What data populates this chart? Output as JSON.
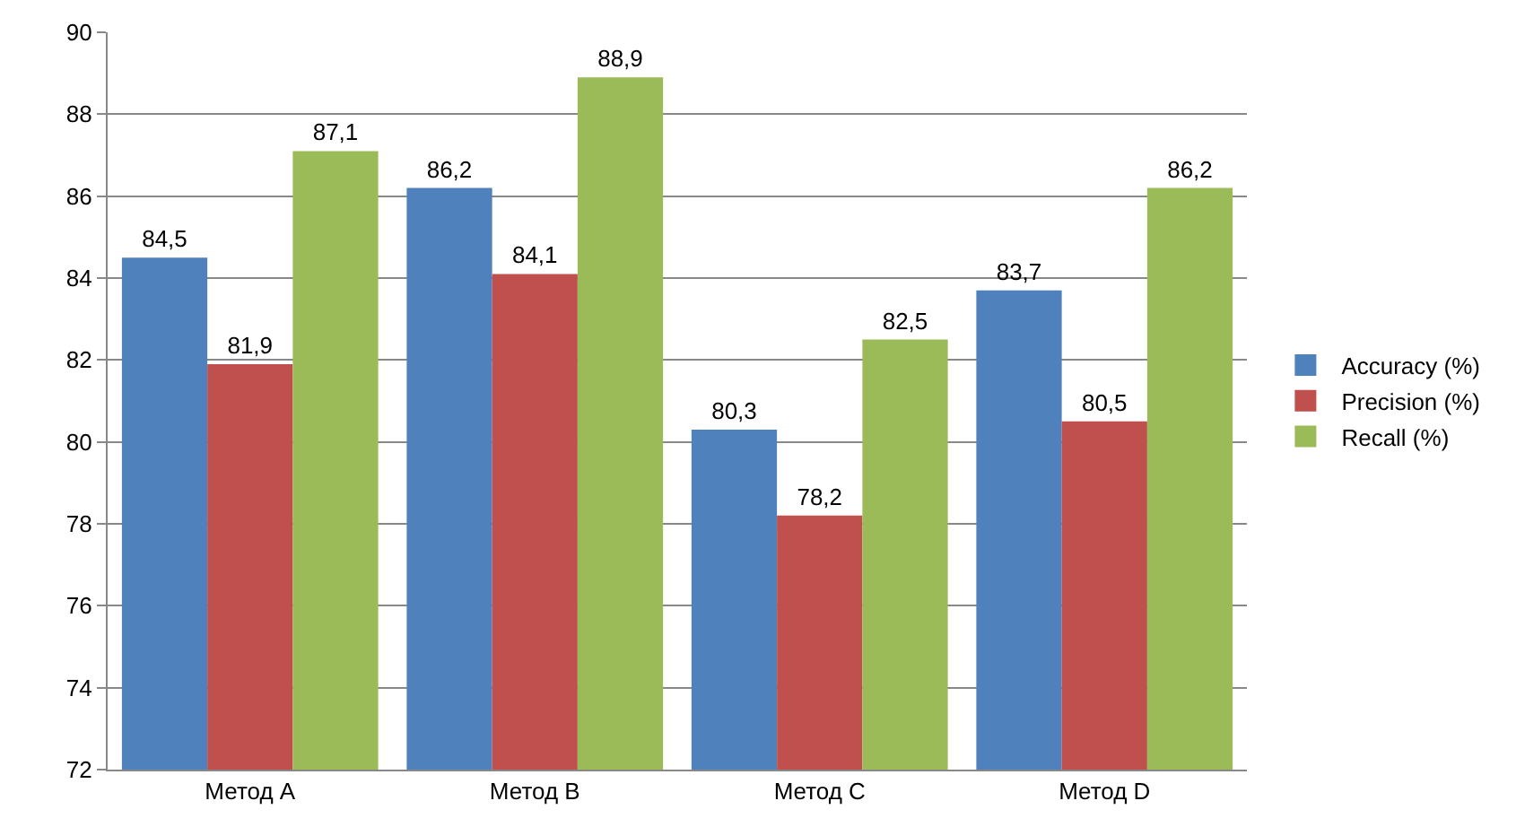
{
  "chart_data": {
    "type": "bar",
    "categories": [
      "Метод A",
      "Метод B",
      "Метод C",
      "Метод D"
    ],
    "series": [
      {
        "name": "Accuracy (%)",
        "color": "#4f81bd",
        "values": [
          84.5,
          86.2,
          80.3,
          83.7
        ],
        "value_labels": [
          "84,5",
          "86,2",
          "80,3",
          "83,7"
        ]
      },
      {
        "name": "Precision (%)",
        "color": "#c0504d",
        "values": [
          81.9,
          84.1,
          78.2,
          80.5
        ],
        "value_labels": [
          "81,9",
          "84,1",
          "78,2",
          "80,5"
        ]
      },
      {
        "name": "Recall (%)",
        "color": "#9bbb59",
        "values": [
          87.1,
          88.9,
          82.5,
          86.2
        ],
        "value_labels": [
          "87,1",
          "88,9",
          "82,5",
          "86,2"
        ]
      }
    ],
    "ylim": [
      72,
      90
    ],
    "yticks": [
      72,
      74,
      76,
      78,
      80,
      82,
      84,
      86,
      88,
      90
    ],
    "grid": "y",
    "legend": "right"
  }
}
